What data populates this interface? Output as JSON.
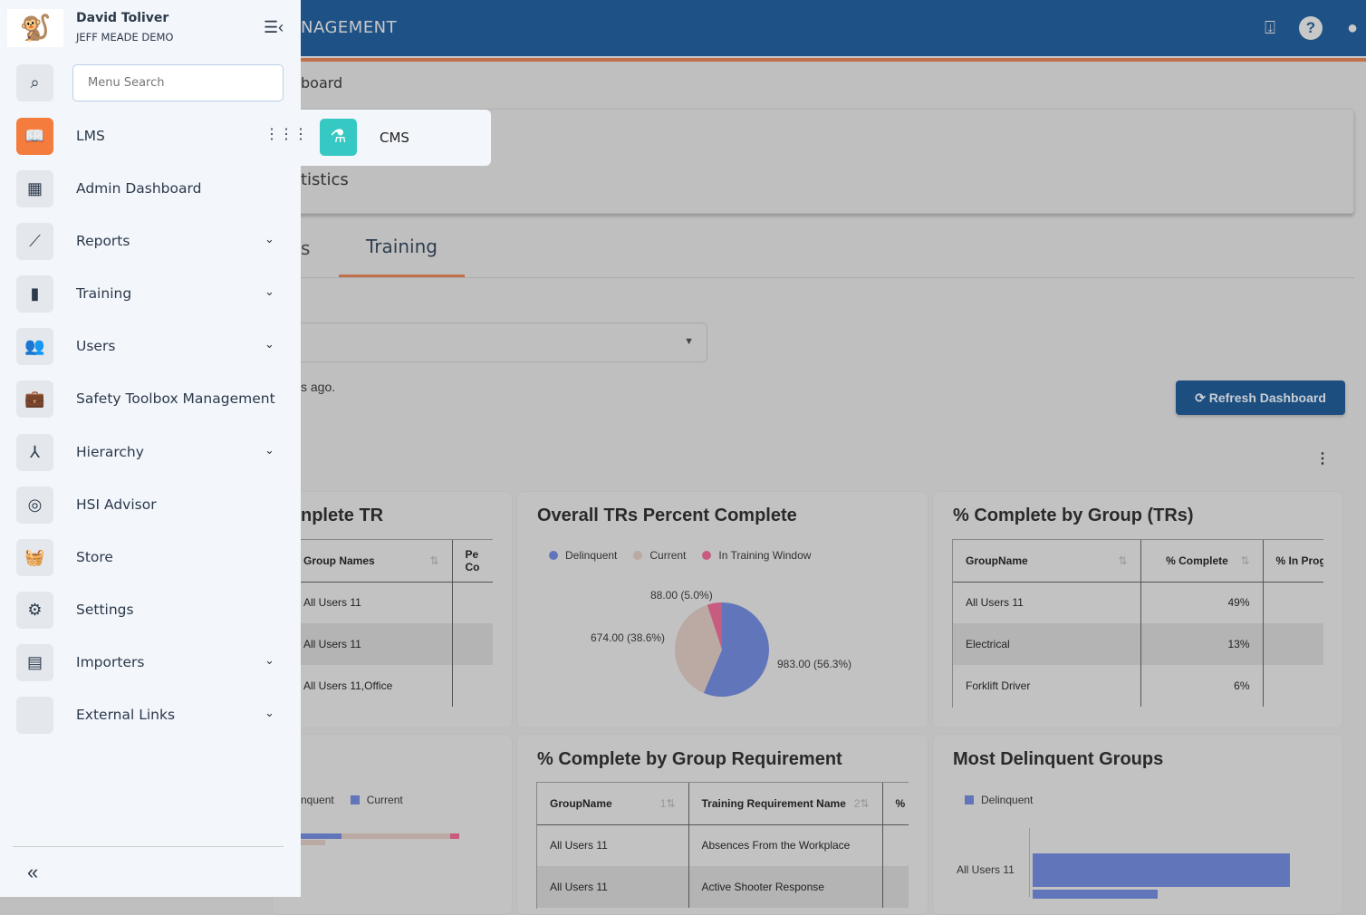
{
  "header": {
    "title": "NAGEMENT",
    "icons": [
      "mobile-download-icon",
      "help-icon",
      "user-icon"
    ]
  },
  "breadcrumb": "board",
  "app_menu": {
    "item": "CMS",
    "icon": "flask-icon",
    "color": "#36c9c3"
  },
  "statistics_label": "tistics",
  "tabs": [
    {
      "label": "s"
    },
    {
      "label": "Training",
      "active": true
    }
  ],
  "updated_text": "s ago.",
  "refresh_button": "Refresh Dashboard",
  "cards": {
    "complete_tr": {
      "title": "nplete TR",
      "columns": [
        "Group Names",
        "Pe Co"
      ],
      "rows": [
        "All Users 11",
        "All Users 11",
        "All Users 11,Office"
      ]
    },
    "overall": {
      "title": "Overall TRs Percent Complete"
    },
    "by_group": {
      "title": "% Complete by Group (TRs)",
      "columns": [
        "GroupName",
        "% Complete",
        "% In Prog"
      ],
      "rows": [
        [
          "All Users 11",
          "49%"
        ],
        [
          "Electrical",
          "13%"
        ],
        [
          "Forklift Driver",
          "6%"
        ]
      ]
    },
    "stacked": {
      "legend": [
        "nquent",
        "Current"
      ]
    },
    "group_req": {
      "title": "% Complete by Group Requirement",
      "columns": [
        "GroupName",
        "Training Requirement Name",
        "%"
      ],
      "sort_orders": [
        "1",
        "2"
      ],
      "rows": [
        [
          "All Users 11",
          "Absences From the Workplace"
        ],
        [
          "All Users 11",
          "Active Shooter Response"
        ]
      ]
    },
    "most_delinquent": {
      "title": "Most Delinquent Groups",
      "legend": [
        "Delinquent"
      ],
      "categories": [
        "All Users 11"
      ]
    }
  },
  "chart_data": {
    "type": "pie",
    "legend": [
      "Delinquent",
      "Current",
      "In Training Window"
    ],
    "values": [
      983,
      674,
      88
    ],
    "labels": [
      "983.00 (56.3%)",
      "674.00 (38.6%)",
      "88.00 (5.0%)"
    ],
    "colors": [
      "#6175bb",
      "#bba9a3",
      "#c85c80"
    ],
    "legend_placement": "top"
  },
  "sidebar": {
    "user_name": "David Toliver",
    "org": "JEFF MEADE DEMO",
    "search_placeholder": "Menu Search",
    "items": [
      {
        "label": "LMS",
        "icon": "book-icon",
        "chevron": false,
        "active": true
      },
      {
        "label": "Admin Dashboard",
        "icon": "dashboard-icon",
        "chevron": false
      },
      {
        "label": "Reports",
        "icon": "trend-icon",
        "chevron": true
      },
      {
        "label": "Training",
        "icon": "reader-icon",
        "chevron": true
      },
      {
        "label": "Users",
        "icon": "users-icon",
        "chevron": true
      },
      {
        "label": "Safety Toolbox Management",
        "icon": "briefcase-icon",
        "chevron": false
      },
      {
        "label": "Hierarchy",
        "icon": "hierarchy-icon",
        "chevron": true
      },
      {
        "label": "HSI Advisor",
        "icon": "target-icon",
        "chevron": false
      },
      {
        "label": "Store",
        "icon": "basket-icon",
        "chevron": false
      },
      {
        "label": "Settings",
        "icon": "gear-icon",
        "chevron": false
      },
      {
        "label": "Importers",
        "icon": "importer-icon",
        "chevron": true
      },
      {
        "label": "External Links",
        "icon": "link-icon",
        "chevron": true
      }
    ]
  }
}
